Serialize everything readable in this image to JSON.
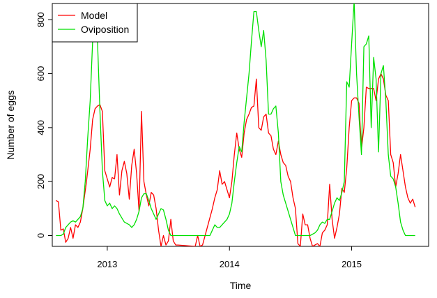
{
  "chart_data": {
    "type": "line",
    "title": "",
    "xlabel": "Time",
    "ylabel": "Number of eggs",
    "xlim": [
      2012.55,
      2015.63
    ],
    "ylim": [
      -40,
      860
    ],
    "x_ticks": [
      2013,
      2014,
      2015
    ],
    "x_tick_labels": [
      "2013",
      "2014",
      "2015"
    ],
    "y_ticks": [
      0,
      200,
      400,
      600,
      800
    ],
    "y_tick_labels": [
      "0",
      "200",
      "400",
      "600",
      "800"
    ],
    "grid": false,
    "legend": {
      "position": "top-left",
      "entries": [
        "Model",
        "Oviposition"
      ]
    },
    "series": [
      {
        "name": "Model",
        "color": "#ff0000",
        "points": [
          [
            2012.58,
            130
          ],
          [
            2012.6,
            125
          ],
          [
            2012.62,
            20
          ],
          [
            2012.64,
            25
          ],
          [
            2012.66,
            -25
          ],
          [
            2012.68,
            -10
          ],
          [
            2012.7,
            30
          ],
          [
            2012.72,
            -10
          ],
          [
            2012.74,
            40
          ],
          [
            2012.76,
            30
          ],
          [
            2012.78,
            50
          ],
          [
            2012.8,
            100
          ],
          [
            2012.83,
            200
          ],
          [
            2012.86,
            320
          ],
          [
            2012.88,
            430
          ],
          [
            2012.9,
            470
          ],
          [
            2012.92,
            480
          ],
          [
            2012.94,
            485
          ],
          [
            2012.96,
            460
          ],
          [
            2012.98,
            240
          ],
          [
            2013.0,
            210
          ],
          [
            2013.02,
            180
          ],
          [
            2013.04,
            215
          ],
          [
            2013.06,
            210
          ],
          [
            2013.08,
            300
          ],
          [
            2013.1,
            150
          ],
          [
            2013.12,
            240
          ],
          [
            2013.14,
            275
          ],
          [
            2013.16,
            230
          ],
          [
            2013.18,
            135
          ],
          [
            2013.2,
            260
          ],
          [
            2013.22,
            320
          ],
          [
            2013.24,
            230
          ],
          [
            2013.26,
            90
          ],
          [
            2013.28,
            460
          ],
          [
            2013.3,
            200
          ],
          [
            2013.32,
            150
          ],
          [
            2013.34,
            110
          ],
          [
            2013.36,
            160
          ],
          [
            2013.38,
            150
          ],
          [
            2013.4,
            100
          ],
          [
            2013.42,
            20
          ],
          [
            2013.44,
            -40
          ],
          [
            2013.46,
            0
          ],
          [
            2013.48,
            -35
          ],
          [
            2013.5,
            -20
          ],
          [
            2013.52,
            60
          ],
          [
            2013.54,
            -20
          ],
          [
            2013.56,
            -35
          ],
          [
            2013.58,
            -35
          ],
          [
            2013.72,
            -40
          ],
          [
            2013.74,
            0
          ],
          [
            2013.76,
            -40
          ],
          [
            2013.78,
            -35
          ],
          [
            2013.86,
            100
          ],
          [
            2013.88,
            140
          ],
          [
            2013.9,
            170
          ],
          [
            2013.92,
            240
          ],
          [
            2013.94,
            190
          ],
          [
            2013.96,
            200
          ],
          [
            2013.98,
            170
          ],
          [
            2014.0,
            140
          ],
          [
            2014.02,
            200
          ],
          [
            2014.04,
            300
          ],
          [
            2014.06,
            380
          ],
          [
            2014.08,
            320
          ],
          [
            2014.1,
            290
          ],
          [
            2014.12,
            380
          ],
          [
            2014.14,
            430
          ],
          [
            2014.16,
            450
          ],
          [
            2014.18,
            475
          ],
          [
            2014.2,
            480
          ],
          [
            2014.22,
            580
          ],
          [
            2014.24,
            400
          ],
          [
            2014.26,
            390
          ],
          [
            2014.28,
            440
          ],
          [
            2014.3,
            450
          ],
          [
            2014.32,
            380
          ],
          [
            2014.34,
            370
          ],
          [
            2014.36,
            320
          ],
          [
            2014.38,
            300
          ],
          [
            2014.4,
            350
          ],
          [
            2014.42,
            300
          ],
          [
            2014.44,
            270
          ],
          [
            2014.46,
            260
          ],
          [
            2014.48,
            220
          ],
          [
            2014.5,
            200
          ],
          [
            2014.52,
            140
          ],
          [
            2014.54,
            100
          ],
          [
            2014.56,
            -30
          ],
          [
            2014.58,
            -40
          ],
          [
            2014.6,
            80
          ],
          [
            2014.62,
            40
          ],
          [
            2014.64,
            40
          ],
          [
            2014.66,
            -10
          ],
          [
            2014.68,
            -40
          ],
          [
            2014.72,
            -30
          ],
          [
            2014.74,
            -40
          ],
          [
            2014.76,
            10
          ],
          [
            2014.78,
            20
          ],
          [
            2014.8,
            40
          ],
          [
            2014.82,
            190
          ],
          [
            2014.84,
            60
          ],
          [
            2014.86,
            -10
          ],
          [
            2014.88,
            30
          ],
          [
            2014.9,
            80
          ],
          [
            2014.92,
            175
          ],
          [
            2014.94,
            160
          ],
          [
            2014.96,
            250
          ],
          [
            2014.98,
            400
          ],
          [
            2015.0,
            500
          ],
          [
            2015.02,
            510
          ],
          [
            2015.04,
            510
          ],
          [
            2015.06,
            490
          ],
          [
            2015.08,
            320
          ],
          [
            2015.1,
            400
          ],
          [
            2015.12,
            550
          ],
          [
            2015.14,
            545
          ],
          [
            2015.16,
            545
          ],
          [
            2015.18,
            545
          ],
          [
            2015.2,
            500
          ],
          [
            2015.22,
            580
          ],
          [
            2015.24,
            600
          ],
          [
            2015.26,
            580
          ],
          [
            2015.28,
            520
          ],
          [
            2015.3,
            500
          ],
          [
            2015.32,
            300
          ],
          [
            2015.34,
            270
          ],
          [
            2015.36,
            180
          ],
          [
            2015.38,
            230
          ],
          [
            2015.4,
            300
          ],
          [
            2015.42,
            240
          ],
          [
            2015.44,
            180
          ],
          [
            2015.46,
            140
          ],
          [
            2015.48,
            120
          ],
          [
            2015.5,
            135
          ],
          [
            2015.52,
            105
          ]
        ]
      },
      {
        "name": "Oviposition",
        "color": "#00e000",
        "points": [
          [
            2012.58,
            0
          ],
          [
            2012.62,
            0
          ],
          [
            2012.64,
            5
          ],
          [
            2012.66,
            30
          ],
          [
            2012.68,
            40
          ],
          [
            2012.7,
            50
          ],
          [
            2012.72,
            55
          ],
          [
            2012.74,
            50
          ],
          [
            2012.76,
            60
          ],
          [
            2012.78,
            70
          ],
          [
            2012.8,
            100
          ],
          [
            2012.82,
            200
          ],
          [
            2012.84,
            360
          ],
          [
            2012.86,
            500
          ],
          [
            2012.88,
            720
          ],
          [
            2012.9,
            790
          ],
          [
            2012.92,
            720
          ],
          [
            2012.94,
            460
          ],
          [
            2012.96,
            240
          ],
          [
            2012.98,
            130
          ],
          [
            2013.0,
            110
          ],
          [
            2013.02,
            120
          ],
          [
            2013.04,
            100
          ],
          [
            2013.06,
            110
          ],
          [
            2013.08,
            100
          ],
          [
            2013.1,
            80
          ],
          [
            2013.12,
            65
          ],
          [
            2013.14,
            50
          ],
          [
            2013.16,
            45
          ],
          [
            2013.18,
            40
          ],
          [
            2013.2,
            30
          ],
          [
            2013.22,
            40
          ],
          [
            2013.24,
            60
          ],
          [
            2013.26,
            90
          ],
          [
            2013.28,
            140
          ],
          [
            2013.3,
            155
          ],
          [
            2013.32,
            155
          ],
          [
            2013.34,
            130
          ],
          [
            2013.36,
            100
          ],
          [
            2013.38,
            80
          ],
          [
            2013.4,
            60
          ],
          [
            2013.42,
            80
          ],
          [
            2013.44,
            100
          ],
          [
            2013.46,
            95
          ],
          [
            2013.48,
            60
          ],
          [
            2013.5,
            20
          ],
          [
            2013.52,
            0
          ],
          [
            2013.6,
            0
          ],
          [
            2013.7,
            0
          ],
          [
            2013.8,
            0
          ],
          [
            2013.84,
            0
          ],
          [
            2013.86,
            20
          ],
          [
            2013.88,
            40
          ],
          [
            2013.9,
            30
          ],
          [
            2013.92,
            30
          ],
          [
            2013.94,
            40
          ],
          [
            2013.96,
            50
          ],
          [
            2013.98,
            60
          ],
          [
            2014.0,
            80
          ],
          [
            2014.02,
            120
          ],
          [
            2014.04,
            200
          ],
          [
            2014.06,
            270
          ],
          [
            2014.08,
            330
          ],
          [
            2014.1,
            310
          ],
          [
            2014.12,
            420
          ],
          [
            2014.14,
            510
          ],
          [
            2014.16,
            600
          ],
          [
            2014.18,
            720
          ],
          [
            2014.2,
            830
          ],
          [
            2014.22,
            830
          ],
          [
            2014.24,
            760
          ],
          [
            2014.26,
            700
          ],
          [
            2014.28,
            760
          ],
          [
            2014.3,
            650
          ],
          [
            2014.32,
            450
          ],
          [
            2014.34,
            450
          ],
          [
            2014.36,
            470
          ],
          [
            2014.38,
            480
          ],
          [
            2014.4,
            380
          ],
          [
            2014.42,
            200
          ],
          [
            2014.44,
            150
          ],
          [
            2014.46,
            120
          ],
          [
            2014.48,
            90
          ],
          [
            2014.5,
            60
          ],
          [
            2014.52,
            30
          ],
          [
            2014.54,
            0
          ],
          [
            2014.58,
            0
          ],
          [
            2014.62,
            0
          ],
          [
            2014.66,
            0
          ],
          [
            2014.7,
            10
          ],
          [
            2014.72,
            20
          ],
          [
            2014.74,
            40
          ],
          [
            2014.76,
            50
          ],
          [
            2014.78,
            45
          ],
          [
            2014.8,
            60
          ],
          [
            2014.82,
            60
          ],
          [
            2014.84,
            90
          ],
          [
            2014.86,
            120
          ],
          [
            2014.88,
            140
          ],
          [
            2014.9,
            130
          ],
          [
            2014.92,
            160
          ],
          [
            2014.94,
            200
          ],
          [
            2014.96,
            570
          ],
          [
            2014.98,
            550
          ],
          [
            2015.0,
            710
          ],
          [
            2015.02,
            870
          ],
          [
            2015.04,
            600
          ],
          [
            2015.06,
            440
          ],
          [
            2015.08,
            300
          ],
          [
            2015.1,
            700
          ],
          [
            2015.12,
            710
          ],
          [
            2015.14,
            740
          ],
          [
            2015.16,
            400
          ],
          [
            2015.18,
            660
          ],
          [
            2015.2,
            580
          ],
          [
            2015.22,
            310
          ],
          [
            2015.24,
            600
          ],
          [
            2015.26,
            630
          ],
          [
            2015.28,
            500
          ],
          [
            2015.3,
            300
          ],
          [
            2015.32,
            220
          ],
          [
            2015.34,
            210
          ],
          [
            2015.36,
            180
          ],
          [
            2015.38,
            120
          ],
          [
            2015.4,
            50
          ],
          [
            2015.42,
            20
          ],
          [
            2015.44,
            0
          ],
          [
            2015.48,
            0
          ],
          [
            2015.52,
            0
          ]
        ]
      }
    ]
  }
}
